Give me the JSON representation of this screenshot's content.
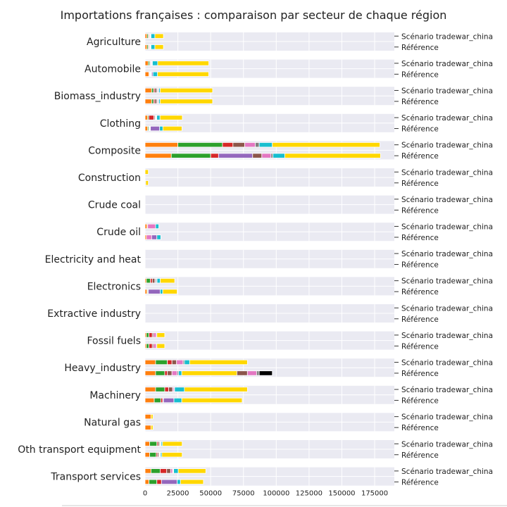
{
  "chart_data": {
    "type": "bar",
    "orientation": "horizontal-stacked",
    "title": "Importations françaises : comparaison par secteur de chaque région",
    "row_labels": [
      "Scénario tradewar_china",
      "Référence"
    ],
    "xlim": [
      0,
      190000
    ],
    "xticks": [
      0,
      25000,
      50000,
      75000,
      100000,
      125000,
      150000,
      175000
    ],
    "grid": true,
    "legend": "none",
    "series_colors": [
      "#ff7f0e",
      "#2ca02c",
      "#d62728",
      "#8c564b",
      "#e377c2",
      "#7f7f7f",
      "#9467bd",
      "#17becf",
      "#ffd700"
    ],
    "categories": [
      {
        "name": "Agriculture",
        "tradewar": [
          1500,
          1000,
          600,
          400,
          500,
          200,
          300,
          3000,
          6500
        ],
        "reference": [
          1500,
          1000,
          600,
          400,
          500,
          200,
          300,
          3000,
          6500
        ]
      },
      {
        "name": "Automobile",
        "tradewar": [
          2500,
          1000,
          500,
          500,
          500,
          300,
          300,
          4000,
          39000
        ],
        "reference": [
          3000,
          500,
          500,
          400,
          400,
          200,
          1000,
          3500,
          39000
        ]
      },
      {
        "name": "Biomass_industry",
        "tradewar": [
          5000,
          1500,
          1000,
          1500,
          500,
          700,
          300,
          1000,
          40000
        ],
        "reference": [
          5000,
          1500,
          1000,
          1500,
          500,
          700,
          300,
          1000,
          40000
        ]
      },
      {
        "name": "Clothing",
        "tradewar": [
          2000,
          800,
          4000,
          800,
          500,
          500,
          300,
          2500,
          17000
        ],
        "reference": [
          2000,
          800,
          300,
          400,
          400,
          200,
          7000,
          2500,
          14500
        ]
      },
      {
        "name": "Composite",
        "tradewar": [
          25000,
          34000,
          8000,
          9000,
          8000,
          3000,
          0,
          10000,
          82000
        ],
        "reference": [
          20000,
          30000,
          6000,
          0,
          0,
          0,
          26000,
          0,
          0
        ],
        "reference_extra": [
          7000,
          7000,
          1500,
          9000,
          73000
        ]
      },
      {
        "name": "Construction",
        "tradewar": [
          0,
          0,
          0,
          0,
          0,
          0,
          0,
          0,
          2500
        ],
        "reference": [
          0,
          0,
          0,
          0,
          0,
          500,
          0,
          0,
          2000
        ]
      },
      {
        "name": "Crude coal",
        "tradewar": [
          0,
          0,
          0,
          0,
          0,
          0,
          0,
          0,
          0
        ],
        "reference": [
          0,
          0,
          0,
          0,
          0,
          0,
          0,
          0,
          0
        ]
      },
      {
        "name": "Crude oil",
        "tradewar": [
          1500,
          0,
          0,
          500,
          6000,
          0,
          0,
          2500,
          0
        ],
        "reference": [
          1000,
          0,
          0,
          0,
          4000,
          0,
          4000,
          3000,
          0
        ]
      },
      {
        "name": "Electricity and heat",
        "tradewar": [
          0,
          0,
          0,
          0,
          0,
          0,
          0,
          0,
          0
        ],
        "reference": [
          0,
          0,
          0,
          0,
          0,
          0,
          0,
          0,
          0
        ]
      },
      {
        "name": "Electronics",
        "tradewar": [
          1000,
          3000,
          1500,
          2000,
          500,
          800,
          300,
          2500,
          11000
        ],
        "reference": [
          1500,
          500,
          0,
          0,
          0,
          500,
          9000,
          2000,
          11000
        ]
      },
      {
        "name": "Extractive industry",
        "tradewar": [
          0,
          0,
          0,
          0,
          0,
          0,
          0,
          0,
          0
        ],
        "reference": [
          0,
          0,
          0,
          0,
          0,
          0,
          0,
          0,
          0
        ]
      },
      {
        "name": "Fossil fuels",
        "tradewar": [
          1000,
          2000,
          2500,
          1000,
          2000,
          500,
          0,
          0,
          6000
        ],
        "reference": [
          1000,
          2000,
          2500,
          1000,
          2000,
          500,
          0,
          0,
          6000
        ]
      },
      {
        "name": "Heavy_industry",
        "tradewar": [
          8000,
          9000,
          3500,
          3500,
          5000,
          1000,
          0,
          4000,
          44000
        ],
        "reference": [
          8000,
          7000,
          2000,
          3500,
          4000,
          1000,
          0,
          2500,
          42000
        ],
        "reference_extra": [
          8000,
          7000,
          2000,
          0,
          0,
          0,
          10000,
          0,
          0
        ]
      },
      {
        "name": "Machinery",
        "tradewar": [
          8000,
          7000,
          3000,
          3000,
          1000,
          500,
          0,
          7500,
          48000
        ],
        "reference": [
          7000,
          5000,
          1500,
          0,
          0,
          500,
          8000,
          6000,
          46000
        ]
      },
      {
        "name": "Natural gas",
        "tradewar": [
          4500,
          0,
          0,
          0,
          0,
          0,
          0,
          0,
          1500
        ],
        "reference": [
          4500,
          0,
          0,
          0,
          0,
          0,
          0,
          0,
          1500
        ]
      },
      {
        "name": "Oth transport equipment",
        "tradewar": [
          3500,
          5500,
          1000,
          1000,
          500,
          500,
          300,
          1000,
          15000
        ],
        "reference": [
          3500,
          5000,
          1000,
          1000,
          500,
          500,
          300,
          1000,
          15500
        ]
      },
      {
        "name": "Transport services",
        "tradewar": [
          4500,
          7000,
          5000,
          3000,
          1500,
          500,
          300,
          3500,
          21000
        ],
        "reference": [
          3000,
          6000,
          3500,
          0,
          0,
          0,
          12000,
          2500,
          17500
        ]
      }
    ]
  }
}
